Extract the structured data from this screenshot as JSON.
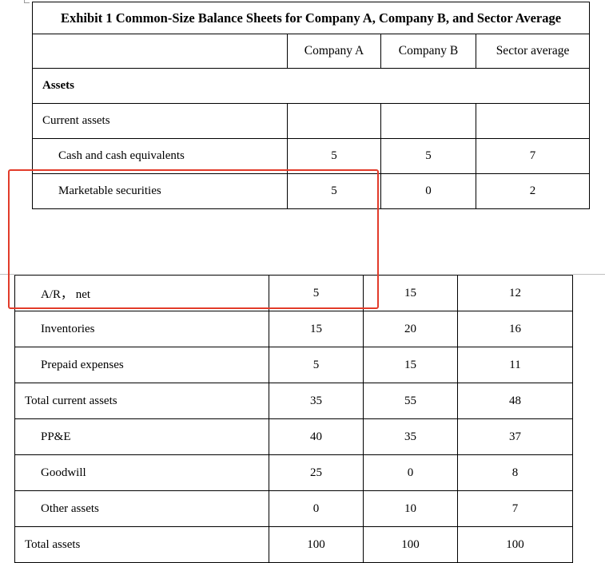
{
  "exhibit": {
    "title": "Exhibit 1 Common-Size Balance Sheets for Company A, Company B, and Sector Average",
    "columns": [
      "Company A",
      "Company B",
      "Sector average"
    ]
  },
  "section_assets": "Assets",
  "current_assets_label": "Current assets",
  "rows_top": [
    {
      "label": "Cash and cash equivalents",
      "a": "5",
      "b": "5",
      "sector": "7"
    },
    {
      "label": "Marketable securities",
      "a": "5",
      "b": "0",
      "sector": "2"
    }
  ],
  "rows_bottom": [
    {
      "label": "A/R， net",
      "a": "5",
      "b": "15",
      "sector": "12"
    },
    {
      "label": "Inventories",
      "a": "15",
      "b": "20",
      "sector": "16"
    },
    {
      "label": "Prepaid expenses",
      "a": "5",
      "b": "15",
      "sector": "11"
    },
    {
      "label": "Total current assets",
      "a": "35",
      "b": "55",
      "sector": "48"
    },
    {
      "label": "PP&E",
      "a": "40",
      "b": "35",
      "sector": "37"
    },
    {
      "label": "Goodwill",
      "a": "25",
      "b": "0",
      "sector": "8"
    },
    {
      "label": "Other assets",
      "a": "0",
      "b": "10",
      "sector": "7"
    },
    {
      "label": "Total assets",
      "a": "100",
      "b": "100",
      "sector": "100"
    }
  ],
  "highlight_color": "#e23b2a"
}
